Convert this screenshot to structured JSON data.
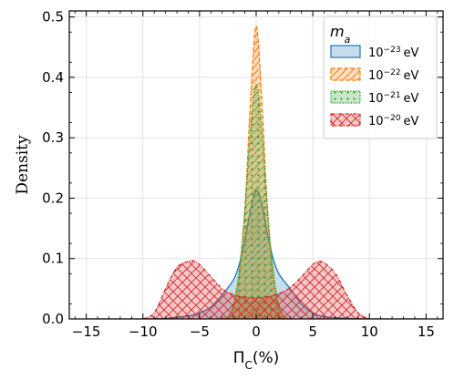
{
  "chart_data": {
    "type": "area",
    "xlabel": "Π_C(%)",
    "ylabel": "Density",
    "xlim": [
      -16.5,
      16.5
    ],
    "ylim": [
      0,
      0.51
    ],
    "x_ticks": [
      -15,
      -10,
      -5,
      0,
      5,
      10,
      15
    ],
    "x_tick_labels": [
      "−15",
      "−10",
      "−5",
      "0",
      "5",
      "10",
      "15"
    ],
    "y_ticks": [
      0.0,
      0.1,
      0.2,
      0.3,
      0.4,
      0.5
    ],
    "y_tick_labels": [
      "0.0",
      "0.1",
      "0.2",
      "0.3",
      "0.4",
      "0.5"
    ],
    "grid": true,
    "legend": {
      "title": "m_a",
      "placement": "top-right",
      "labels": [
        "10−23 eV",
        "10−22 eV",
        "10−21 eV",
        "10−20 eV"
      ]
    },
    "series": [
      {
        "name": "10−23 eV",
        "color": "#1f77b4",
        "hatch": "none",
        "x": [
          -15,
          -10,
          -8,
          -6,
          -5,
          -4,
          -3,
          -2,
          -1.5,
          -1,
          -0.5,
          0,
          0.5,
          1,
          1.5,
          2,
          3,
          4,
          5,
          6,
          8,
          10,
          15
        ],
        "y": [
          0.0,
          0.0,
          0.001,
          0.005,
          0.01,
          0.02,
          0.04,
          0.065,
          0.09,
          0.13,
          0.18,
          0.213,
          0.19,
          0.14,
          0.1,
          0.075,
          0.05,
          0.025,
          0.01,
          0.004,
          0.001,
          0.0,
          0.0
        ]
      },
      {
        "name": "10−22 eV",
        "color": "#ff7f0e",
        "hatch": "diagonal",
        "x": [
          -3,
          -2.5,
          -2,
          -1.5,
          -1,
          -0.5,
          0,
          0.5,
          1,
          1.5,
          2,
          2.5,
          3
        ],
        "y": [
          0.0,
          0.003,
          0.02,
          0.07,
          0.18,
          0.36,
          0.485,
          0.36,
          0.18,
          0.07,
          0.02,
          0.003,
          0.0
        ]
      },
      {
        "name": "10−21 eV",
        "color": "#2ca02c",
        "hatch": "dots",
        "x": [
          -3,
          -2.5,
          -2,
          -1.5,
          -1,
          -0.5,
          0,
          0.5,
          1,
          1.5,
          2,
          2.5,
          3
        ],
        "y": [
          0.0,
          0.004,
          0.025,
          0.08,
          0.18,
          0.31,
          0.388,
          0.31,
          0.18,
          0.08,
          0.025,
          0.004,
          0.0
        ]
      },
      {
        "name": "10−20 eV",
        "color": "#d62728",
        "hatch": "crosshatch",
        "x": [
          -10,
          -9,
          -8,
          -7,
          -6,
          -5.5,
          -5,
          -4,
          -3,
          -2,
          -1,
          0,
          1,
          2,
          3,
          4,
          5,
          5.5,
          6,
          7,
          8,
          9,
          10
        ],
        "y": [
          0.0,
          0.01,
          0.05,
          0.085,
          0.095,
          0.096,
          0.09,
          0.07,
          0.05,
          0.04,
          0.036,
          0.035,
          0.037,
          0.042,
          0.052,
          0.07,
          0.09,
          0.095,
          0.093,
          0.075,
          0.04,
          0.01,
          0.0
        ]
      }
    ]
  }
}
